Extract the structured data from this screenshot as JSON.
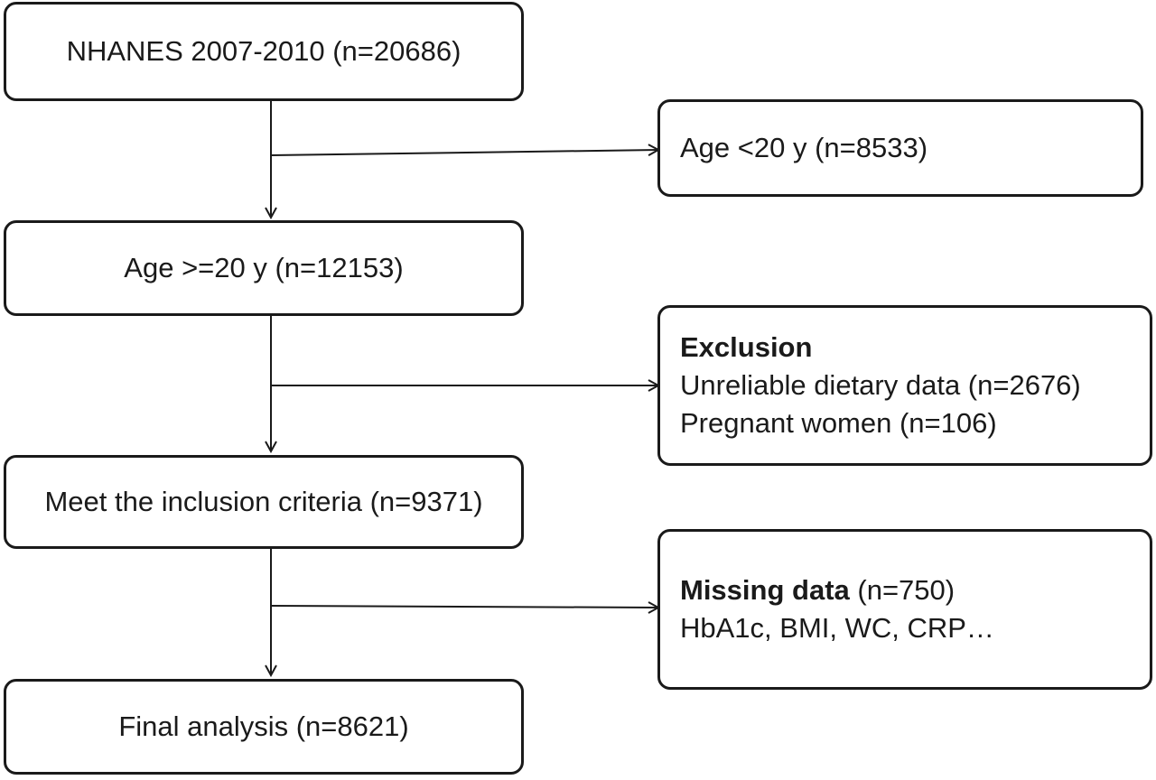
{
  "main_flow": [
    {
      "label": "NHANES 2007-2010 (n=20686)"
    },
    {
      "label": "Age >=20 y (n=12153)"
    },
    {
      "label": "Meet the inclusion criteria (n=9371)"
    },
    {
      "label": "Final analysis (n=8621)"
    }
  ],
  "exclusions": {
    "age": {
      "line1": "Age <20 y (n=8533)"
    },
    "exclusion": {
      "heading": "Exclusion",
      "lines": [
        "Unreliable dietary data (n=2676)",
        "Pregnant women (n=106)"
      ]
    },
    "missing": {
      "heading": "Missing data",
      "heading_suffix": " (n=750)",
      "lines": [
        "HbA1c, BMI, WC, CRP…"
      ]
    }
  },
  "colors": {
    "stroke": "#1a1a1a",
    "background": "#ffffff"
  }
}
